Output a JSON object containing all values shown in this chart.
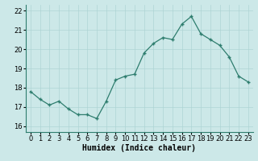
{
  "x": [
    0,
    1,
    2,
    3,
    4,
    5,
    6,
    7,
    8,
    9,
    10,
    11,
    12,
    13,
    14,
    15,
    16,
    17,
    18,
    19,
    20,
    21,
    22,
    23
  ],
  "y": [
    17.8,
    17.4,
    17.1,
    17.3,
    16.9,
    16.6,
    16.6,
    16.4,
    17.3,
    18.4,
    18.6,
    18.7,
    19.8,
    20.3,
    20.6,
    20.5,
    21.3,
    21.7,
    20.8,
    20.5,
    20.2,
    19.6,
    18.6,
    18.3
  ],
  "line_color": "#2e7d6e",
  "marker_color": "#2e7d6e",
  "bg_color": "#cce8e8",
  "grid_color": "#aed4d4",
  "grid_color_minor": "#c4e0e0",
  "xlabel": "Humidex (Indice chaleur)",
  "ylim": [
    15.7,
    22.3
  ],
  "xlim": [
    -0.5,
    23.5
  ],
  "yticks": [
    16,
    17,
    18,
    19,
    20,
    21,
    22
  ],
  "xticks": [
    0,
    1,
    2,
    3,
    4,
    5,
    6,
    7,
    8,
    9,
    10,
    11,
    12,
    13,
    14,
    15,
    16,
    17,
    18,
    19,
    20,
    21,
    22,
    23
  ],
  "axis_fontsize": 6.5,
  "tick_fontsize": 6.0,
  "xlabel_fontsize": 7.0
}
